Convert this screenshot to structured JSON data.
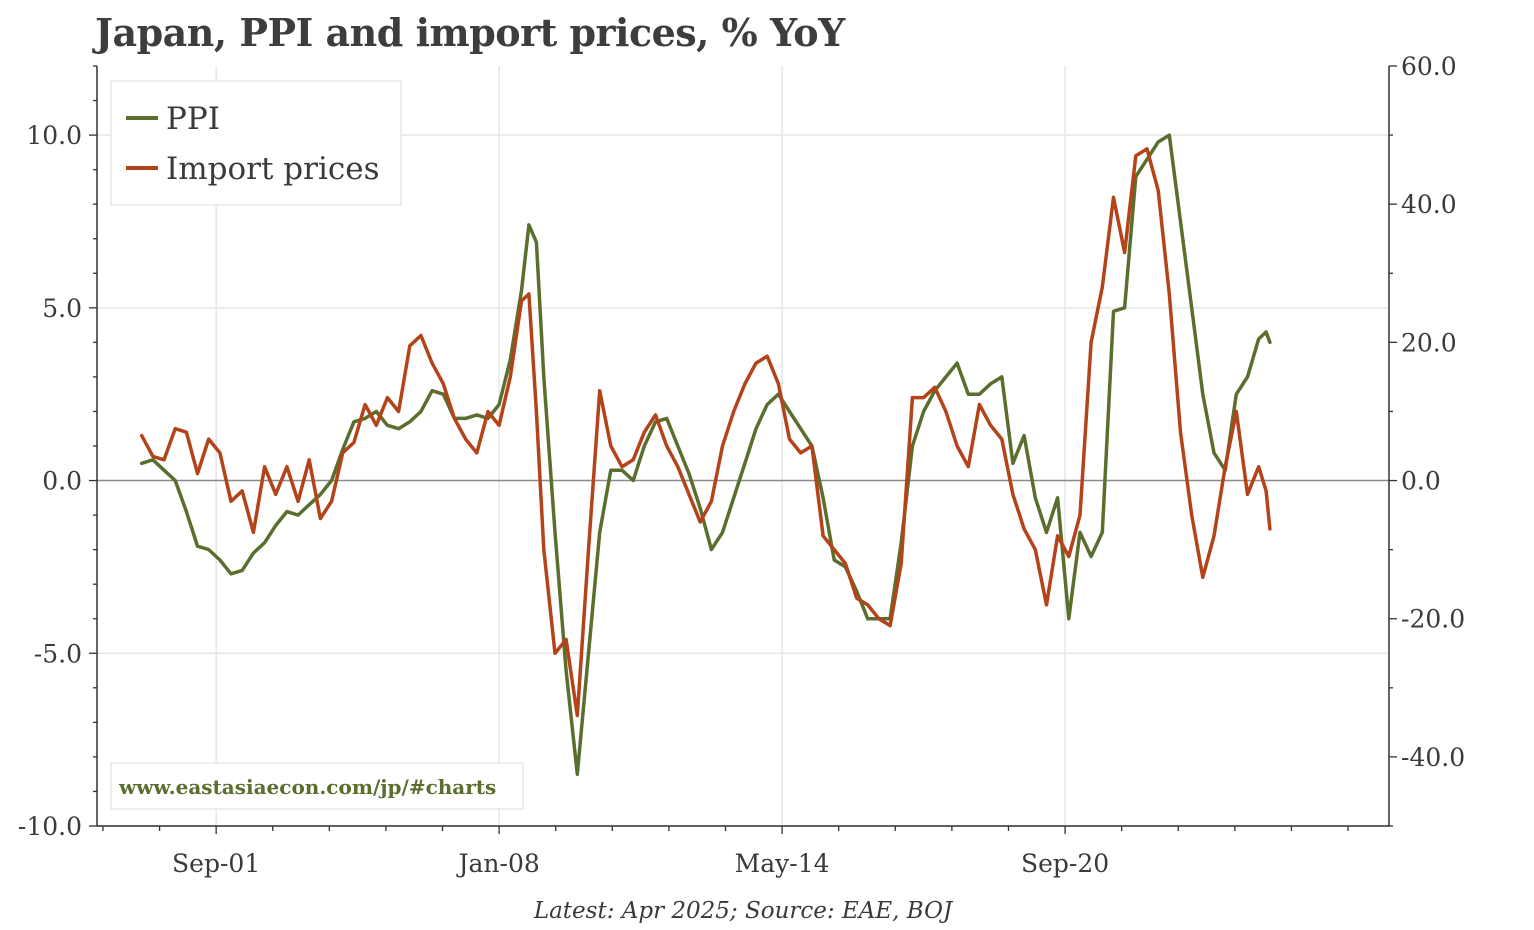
{
  "chart_data": {
    "type": "line",
    "title": "Japan, PPI and import prices, % YoY",
    "source": "Latest: Apr 2025; Source: EAE, BOJ",
    "watermark": "www.eastasiaecon.com/jp/#charts",
    "x_axis": {
      "tick_labels": [
        "Sep-01",
        "Jan-08",
        "May-14",
        "Sep-20"
      ],
      "range": [
        "1999-01",
        "2027-12"
      ]
    },
    "y_axis_left": {
      "range": [
        -10,
        12
      ],
      "ticks": [
        -10,
        -5,
        0,
        5,
        10
      ],
      "tick_labels": [
        "-10.0",
        "-5.0",
        "0.0",
        "5.0",
        "10.0"
      ]
    },
    "y_axis_right": {
      "range": [
        -50,
        60
      ],
      "ticks": [
        -40,
        -20,
        0,
        20,
        40,
        60
      ],
      "tick_labels": [
        "-40.0",
        "-20.0",
        "0.0",
        "20.0",
        "40.0",
        "60.0"
      ]
    },
    "grid": true,
    "legend_position": "top-left",
    "series": [
      {
        "name": "PPI",
        "axis": "left",
        "color": "#5a6e2e",
        "points": [
          [
            "2000-01",
            0.5
          ],
          [
            "2000-04",
            0.6
          ],
          [
            "2000-07",
            0.3
          ],
          [
            "2000-10",
            0.0
          ],
          [
            "2001-01",
            -0.9
          ],
          [
            "2001-04",
            -1.9
          ],
          [
            "2001-07",
            -2.0
          ],
          [
            "2001-10",
            -2.3
          ],
          [
            "2002-01",
            -2.7
          ],
          [
            "2002-04",
            -2.6
          ],
          [
            "2002-07",
            -2.1
          ],
          [
            "2002-10",
            -1.8
          ],
          [
            "2003-01",
            -1.3
          ],
          [
            "2003-04",
            -0.9
          ],
          [
            "2003-07",
            -1.0
          ],
          [
            "2003-10",
            -0.7
          ],
          [
            "2004-01",
            -0.4
          ],
          [
            "2004-04",
            0.0
          ],
          [
            "2004-07",
            0.9
          ],
          [
            "2004-10",
            1.7
          ],
          [
            "2005-01",
            1.8
          ],
          [
            "2005-04",
            2.0
          ],
          [
            "2005-07",
            1.6
          ],
          [
            "2005-10",
            1.5
          ],
          [
            "2006-01",
            1.7
          ],
          [
            "2006-04",
            2.0
          ],
          [
            "2006-07",
            2.6
          ],
          [
            "2006-10",
            2.5
          ],
          [
            "2007-01",
            1.8
          ],
          [
            "2007-04",
            1.8
          ],
          [
            "2007-07",
            1.9
          ],
          [
            "2007-10",
            1.8
          ],
          [
            "2008-01",
            2.2
          ],
          [
            "2008-04",
            3.5
          ],
          [
            "2008-07",
            5.5
          ],
          [
            "2008-09",
            7.4
          ],
          [
            "2008-11",
            6.9
          ],
          [
            "2009-01",
            3.0
          ],
          [
            "2009-04",
            -1.5
          ],
          [
            "2009-07",
            -5.5
          ],
          [
            "2009-10",
            -8.5
          ],
          [
            "2010-01",
            -5.0
          ],
          [
            "2010-04",
            -1.5
          ],
          [
            "2010-07",
            0.3
          ],
          [
            "2010-10",
            0.3
          ],
          [
            "2011-01",
            0.0
          ],
          [
            "2011-04",
            1.0
          ],
          [
            "2011-07",
            1.7
          ],
          [
            "2011-10",
            1.8
          ],
          [
            "2012-01",
            1.0
          ],
          [
            "2012-04",
            0.2
          ],
          [
            "2012-07",
            -0.8
          ],
          [
            "2012-10",
            -2.0
          ],
          [
            "2013-01",
            -1.5
          ],
          [
            "2013-04",
            -0.5
          ],
          [
            "2013-07",
            0.5
          ],
          [
            "2013-10",
            1.5
          ],
          [
            "2014-01",
            2.2
          ],
          [
            "2014-04",
            2.5
          ],
          [
            "2014-07",
            2.0
          ],
          [
            "2014-10",
            1.5
          ],
          [
            "2015-01",
            1.0
          ],
          [
            "2015-04",
            -0.5
          ],
          [
            "2015-07",
            -2.3
          ],
          [
            "2015-10",
            -2.5
          ],
          [
            "2016-01",
            -3.2
          ],
          [
            "2016-04",
            -4.0
          ],
          [
            "2016-07",
            -4.0
          ],
          [
            "2016-10",
            -4.0
          ],
          [
            "2017-01",
            -1.8
          ],
          [
            "2017-04",
            1.0
          ],
          [
            "2017-07",
            2.0
          ],
          [
            "2017-10",
            2.6
          ],
          [
            "2018-01",
            3.0
          ],
          [
            "2018-04",
            3.4
          ],
          [
            "2018-07",
            2.5
          ],
          [
            "2018-10",
            2.5
          ],
          [
            "2019-01",
            2.8
          ],
          [
            "2019-04",
            3.0
          ],
          [
            "2019-07",
            0.5
          ],
          [
            "2019-10",
            1.3
          ],
          [
            "2020-01",
            -0.5
          ],
          [
            "2020-04",
            -1.5
          ],
          [
            "2020-07",
            -0.5
          ],
          [
            "2020-10",
            -4.0
          ],
          [
            "2021-01",
            -1.5
          ],
          [
            "2021-04",
            -2.2
          ],
          [
            "2021-07",
            -1.5
          ],
          [
            "2021-10",
            4.9
          ],
          [
            "2022-01",
            5.0
          ],
          [
            "2022-04",
            8.8
          ],
          [
            "2022-07",
            9.3
          ],
          [
            "2022-10",
            9.8
          ],
          [
            "2023-01",
            10.0
          ],
          [
            "2023-04",
            7.5
          ],
          [
            "2023-07",
            5.0
          ],
          [
            "2023-10",
            2.5
          ],
          [
            "2024-01",
            0.8
          ],
          [
            "2024-04",
            0.3
          ],
          [
            "2024-07",
            2.5
          ],
          [
            "2024-10",
            3.0
          ],
          [
            "2025-01",
            4.1
          ],
          [
            "2025-03",
            4.3
          ],
          [
            "2025-04",
            4.0
          ]
        ]
      },
      {
        "name": "Import prices",
        "axis": "right",
        "color": "#b5431a",
        "points": [
          [
            "2000-01",
            6.5
          ],
          [
            "2000-04",
            3.5
          ],
          [
            "2000-07",
            3.0
          ],
          [
            "2000-10",
            7.5
          ],
          [
            "2001-01",
            7.0
          ],
          [
            "2001-04",
            1.0
          ],
          [
            "2001-07",
            6.0
          ],
          [
            "2001-10",
            4.0
          ],
          [
            "2002-01",
            -3.0
          ],
          [
            "2002-04",
            -1.5
          ],
          [
            "2002-07",
            -7.5
          ],
          [
            "2002-10",
            2.0
          ],
          [
            "2003-01",
            -2.0
          ],
          [
            "2003-04",
            2.0
          ],
          [
            "2003-07",
            -3.0
          ],
          [
            "2003-10",
            3.0
          ],
          [
            "2004-01",
            -5.5
          ],
          [
            "2004-04",
            -3.0
          ],
          [
            "2004-07",
            4.0
          ],
          [
            "2004-10",
            5.5
          ],
          [
            "2005-01",
            11.0
          ],
          [
            "2005-04",
            8.0
          ],
          [
            "2005-07",
            12.0
          ],
          [
            "2005-10",
            10.0
          ],
          [
            "2006-01",
            19.5
          ],
          [
            "2006-04",
            21.0
          ],
          [
            "2006-07",
            17.0
          ],
          [
            "2006-10",
            14.0
          ],
          [
            "2007-01",
            9.0
          ],
          [
            "2007-04",
            6.0
          ],
          [
            "2007-07",
            4.0
          ],
          [
            "2007-10",
            10.0
          ],
          [
            "2008-01",
            8.0
          ],
          [
            "2008-04",
            15.0
          ],
          [
            "2008-07",
            26.0
          ],
          [
            "2008-09",
            27.0
          ],
          [
            "2008-11",
            10.0
          ],
          [
            "2009-01",
            -10.0
          ],
          [
            "2009-04",
            -25.0
          ],
          [
            "2009-07",
            -23.0
          ],
          [
            "2009-10",
            -34.0
          ],
          [
            "2010-01",
            -10.0
          ],
          [
            "2010-04",
            13.0
          ],
          [
            "2010-07",
            5.0
          ],
          [
            "2010-10",
            2.0
          ],
          [
            "2011-01",
            3.0
          ],
          [
            "2011-04",
            7.0
          ],
          [
            "2011-07",
            9.5
          ],
          [
            "2011-10",
            5.0
          ],
          [
            "2012-01",
            2.0
          ],
          [
            "2012-04",
            -2.0
          ],
          [
            "2012-07",
            -6.0
          ],
          [
            "2012-10",
            -3.0
          ],
          [
            "2013-01",
            5.0
          ],
          [
            "2013-04",
            10.0
          ],
          [
            "2013-07",
            14.0
          ],
          [
            "2013-10",
            17.0
          ],
          [
            "2014-01",
            18.0
          ],
          [
            "2014-04",
            14.0
          ],
          [
            "2014-07",
            6.0
          ],
          [
            "2014-10",
            4.0
          ],
          [
            "2015-01",
            5.0
          ],
          [
            "2015-04",
            -8.0
          ],
          [
            "2015-07",
            -10.0
          ],
          [
            "2015-10",
            -12.0
          ],
          [
            "2016-01",
            -17.0
          ],
          [
            "2016-04",
            -18.0
          ],
          [
            "2016-07",
            -20.0
          ],
          [
            "2016-10",
            -21.0
          ],
          [
            "2017-01",
            -12.0
          ],
          [
            "2017-04",
            12.0
          ],
          [
            "2017-07",
            12.0
          ],
          [
            "2017-10",
            13.5
          ],
          [
            "2018-01",
            10.0
          ],
          [
            "2018-04",
            5.0
          ],
          [
            "2018-07",
            2.0
          ],
          [
            "2018-10",
            11.0
          ],
          [
            "2019-01",
            8.0
          ],
          [
            "2019-04",
            6.0
          ],
          [
            "2019-07",
            -2.0
          ],
          [
            "2019-10",
            -7.0
          ],
          [
            "2020-01",
            -10.0
          ],
          [
            "2020-04",
            -18.0
          ],
          [
            "2020-07",
            -8.0
          ],
          [
            "2020-10",
            -11.0
          ],
          [
            "2021-01",
            -5.0
          ],
          [
            "2021-04",
            20.0
          ],
          [
            "2021-07",
            28.0
          ],
          [
            "2021-10",
            41.0
          ],
          [
            "2022-01",
            33.0
          ],
          [
            "2022-04",
            47.0
          ],
          [
            "2022-07",
            48.0
          ],
          [
            "2022-10",
            42.0
          ],
          [
            "2023-01",
            27.0
          ],
          [
            "2023-04",
            7.0
          ],
          [
            "2023-07",
            -5.0
          ],
          [
            "2023-10",
            -14.0
          ],
          [
            "2024-01",
            -8.0
          ],
          [
            "2024-04",
            2.0
          ],
          [
            "2024-07",
            10.0
          ],
          [
            "2024-10",
            -2.0
          ],
          [
            "2025-01",
            2.0
          ],
          [
            "2025-03",
            -1.5
          ],
          [
            "2025-04",
            -7.0
          ]
        ]
      }
    ]
  }
}
